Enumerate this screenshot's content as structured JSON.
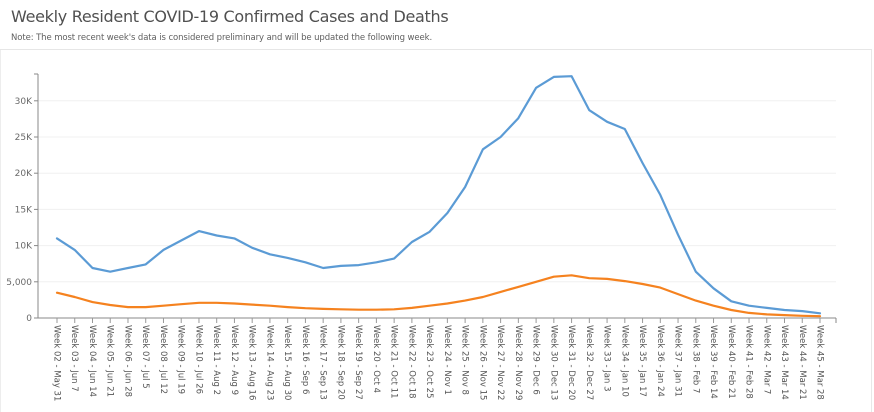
{
  "header": {
    "title": "Weekly Resident COVID-19 Confirmed Cases and Deaths",
    "note": "Note: The most recent week's data is considered preliminary and will be updated the following week."
  },
  "chart_data": {
    "type": "line",
    "title": "Weekly Resident COVID-19 Confirmed Cases and Deaths",
    "xlabel": "",
    "ylabel": "",
    "ylim": [
      0,
      34000
    ],
    "grid": true,
    "legend": "none",
    "y_ticks": [
      {
        "value": 0,
        "label": "0"
      },
      {
        "value": 5000,
        "label": "5,000"
      },
      {
        "value": 10000,
        "label": "10K"
      },
      {
        "value": 15000,
        "label": "15K"
      },
      {
        "value": 20000,
        "label": "20K"
      },
      {
        "value": 25000,
        "label": "25K"
      },
      {
        "value": 30000,
        "label": "30K"
      }
    ],
    "categories": [
      "Week 02 - May 31",
      "Week 03 - Jun 7",
      "Week 04 - Jun 14",
      "Week 05 - Jun 21",
      "Week 06 - Jun 28",
      "Week 07 - Jul 5",
      "Week 08 - Jul 12",
      "Week 09 - Jul 19",
      "Week 10 - Jul 26",
      "Week 11 - Aug 2",
      "Week 12 - Aug 9",
      "Week 13 - Aug 16",
      "Week 14 - Aug 23",
      "Week 15 - Aug 30",
      "Week 16 - Sep 6",
      "Week 17 - Sep 13",
      "Week 18 - Sep 20",
      "Week 19 - Sep 27",
      "Week 20 - Oct 4",
      "Week 21 - Oct 11",
      "Week 22 - Oct 18",
      "Week 23 - Oct 25",
      "Week 24 - Nov 1",
      "Week 25 - Nov 8",
      "Week 26 - Nov 15",
      "Week 27 - Nov 22",
      "Week 28 - Nov 29",
      "Week 29 - Dec 6",
      "Week 30 - Dec 13",
      "Week 31 - Dec 20",
      "Week 32 - Dec 27",
      "Week 33 - Jan 3",
      "Week 34 - Jan 10",
      "Week 35 - Jan 17",
      "Week 36 - Jan 24",
      "Week 37 - Jan 31",
      "Week 38 - Feb 7",
      "Week 39 - Feb 14",
      "Week 40 - Feb 21",
      "Week 41 - Feb 28",
      "Week 42 - Mar 7",
      "Week 43 - Mar 14",
      "Week 44 - Mar 21",
      "Week 45 - Mar 28"
    ],
    "series": [
      {
        "name": "Confirmed Cases",
        "color": "#5b9bd5",
        "values": [
          11000,
          9400,
          6900,
          6400,
          6900,
          7400,
          9400,
          10700,
          12000,
          11400,
          11000,
          9700,
          8800,
          8300,
          7700,
          6900,
          7200,
          7300,
          7700,
          8200,
          10500,
          11900,
          14500,
          18100,
          23300,
          25000,
          27600,
          31800,
          33300,
          33400,
          28700,
          27100,
          26100,
          21400,
          17000,
          11500,
          6400,
          4100,
          2300,
          1700,
          1400,
          1100,
          950,
          650
        ]
      },
      {
        "name": "Deaths",
        "color": "#f5821f",
        "values": [
          3500,
          2900,
          2200,
          1800,
          1500,
          1500,
          1700,
          1900,
          2100,
          2100,
          2000,
          1850,
          1700,
          1500,
          1350,
          1250,
          1200,
          1150,
          1150,
          1200,
          1400,
          1700,
          2000,
          2400,
          2900,
          3600,
          4300,
          5000,
          5700,
          5900,
          5500,
          5400,
          5100,
          4700,
          4200,
          3300,
          2400,
          1700,
          1100,
          700,
          500,
          400,
          300,
          250
        ]
      }
    ]
  }
}
